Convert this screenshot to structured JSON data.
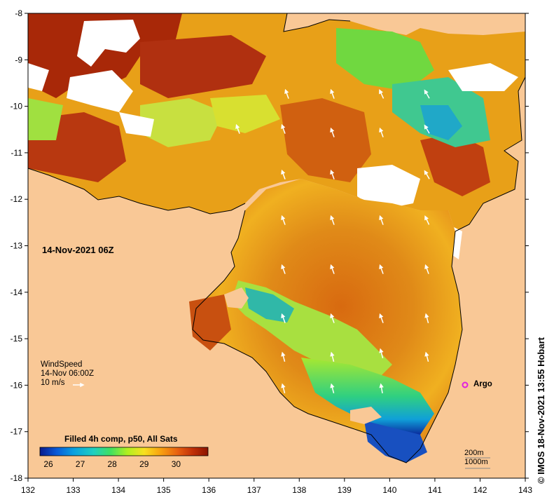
{
  "map": {
    "title": "",
    "lon_ticks": [
      "132",
      "133",
      "134",
      "135",
      "136",
      "137",
      "138",
      "139",
      "140",
      "141",
      "142",
      "143"
    ],
    "lat_ticks": [
      "-8",
      "-9",
      "-10",
      "-11",
      "-12",
      "-13",
      "-14",
      "-15",
      "-16",
      "-17",
      "-18"
    ],
    "lon_range": [
      132,
      143
    ],
    "lat_range": [
      -18,
      -8
    ],
    "land_color": "#f9c896",
    "no_data_color": "#ffffff"
  },
  "date_label": "14-Nov-2021 06Z",
  "wind": {
    "title": "WindSpeed",
    "time": "14-Nov 06:00Z",
    "scale": "10 m/s"
  },
  "legend": {
    "title": "Filled 4h comp, p50, All Sats",
    "ticks": [
      "26",
      "27",
      "28",
      "29",
      "30"
    ],
    "colors": [
      "#0a1a8c",
      "#0a5ad8",
      "#0aa0e0",
      "#20d0c0",
      "#40e060",
      "#b0f020",
      "#f8e020",
      "#f8a010",
      "#e86010",
      "#c03008",
      "#8c1400"
    ]
  },
  "markers": {
    "argo_label": "Argo",
    "argo_color": "#e020e0"
  },
  "scale_labels": [
    "200m",
    "1000m"
  ],
  "credit": "© IMOS 18-Nov-2021 13:55 Hobart"
}
